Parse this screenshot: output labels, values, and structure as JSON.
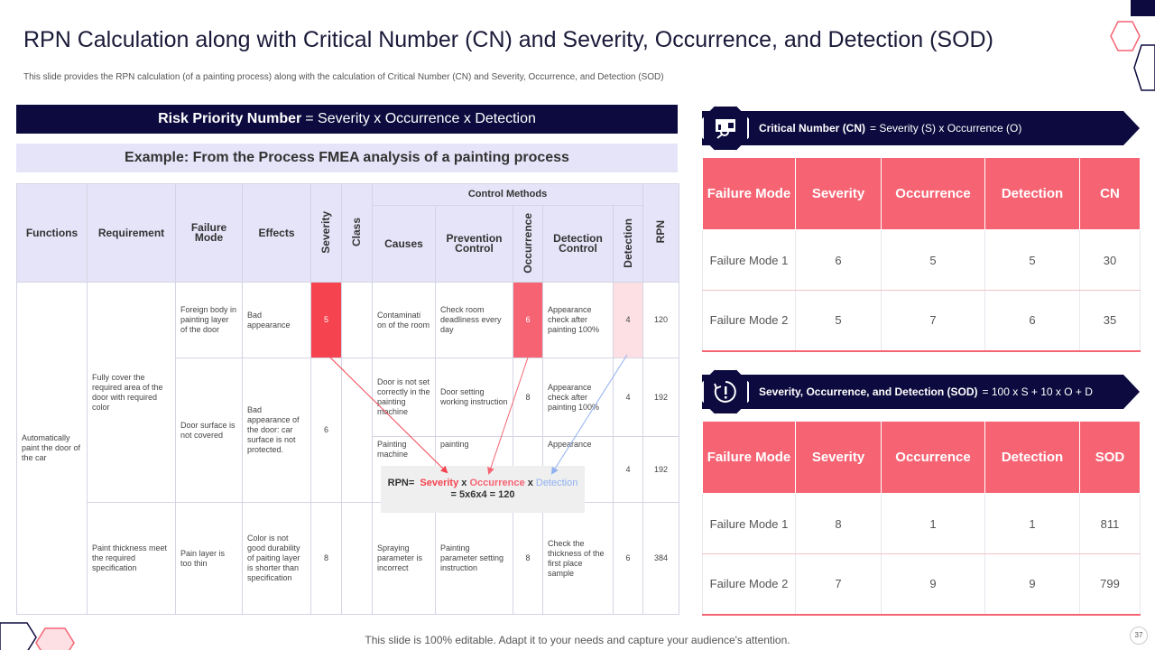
{
  "title": "RPN Calculation along with Critical Number (CN) and Severity, Occurrence, and Detection (SOD)",
  "subtitle": "This slide provides the RPN  calculation (of a painting process) along with the calculation of Critical Number  (CN)  and Severity, Occurrence, and Detection (SOD)",
  "rpn_formula": {
    "bold": "Risk Priority Number",
    "rest": "= Severity x Occurrence x Detection"
  },
  "example": "Example: From the Process FMEA analysis of a painting process",
  "fmea": {
    "headers": {
      "functions": "Functions",
      "requirement": "Requirement",
      "failure_mode": "Failure Mode",
      "effects": "Effects",
      "severity": "Severity",
      "class": "Class",
      "control_methods": "Control Methods",
      "causes": "Causes",
      "prevention": "Prevention Control",
      "occurrence": "Occurrence",
      "detection_control": "Detection Control",
      "detection": "Detection",
      "rpn": "RPN"
    },
    "function": "Automatically paint the door of the car",
    "req1": "Fully cover the required area of the door with required color",
    "req2": "Paint thickness meet the required specification",
    "rows": [
      {
        "failure_mode": "Foreign body in painting layer of the door",
        "effects": "Bad appearance",
        "severity": "5",
        "class": "",
        "causes": "Contaminati on of the room",
        "prevention": "Check room deadliness every day",
        "occurrence": "6",
        "detection_control": "Appearance check after painting 100%",
        "detection": "4",
        "rpn": "120"
      },
      {
        "failure_mode": "Door surface is not covered",
        "effects": "Bad appearance of the door: car surface is not protected.",
        "severity": "6",
        "class": "",
        "causes": "Door is not set correctly in the painting machine",
        "prevention": "Door setting working instruction",
        "occurrence": "8",
        "detection_control": "Appearance check after painting 100%",
        "detection": "4",
        "rpn": "192"
      },
      {
        "causes": "Painting machine",
        "prevention": "painting",
        "occurrence": "",
        "detection_control": "Appearance",
        "detection": "4",
        "rpn": "192"
      },
      {
        "failure_mode": "Pain layer is too thin",
        "effects": "Color is not good durability of paiting layer is shorter than specification",
        "severity": "8",
        "class": "",
        "causes": "Spraying parameter is incorrect",
        "prevention": "Painting parameter setting instruction",
        "occurrence": "8",
        "detection_control": "Check the thickness of the first place sample",
        "detection": "6",
        "rpn": "384"
      }
    ]
  },
  "rpn_callout": {
    "prefix": "RPN=",
    "severity": "Severity",
    "x": "x",
    "occurrence": "Occurrence",
    "detection": "Detection",
    "result": "= 5x6x4 = 120"
  },
  "cn": {
    "icon": "presentation-analytics-icon",
    "bold": "Critical Number (CN)",
    "rest": "= Severity (S) x Occurrence (O)",
    "headers": [
      "Failure Mode",
      "Severity",
      "Occurrence",
      "Detection",
      "CN"
    ],
    "rows": [
      [
        "Failure Mode 1",
        "6",
        "5",
        "5",
        "30"
      ],
      [
        "Failure Mode 2",
        "5",
        "7",
        "6",
        "35"
      ]
    ]
  },
  "sod": {
    "icon": "alert-refresh-icon",
    "bold": "Severity, Occurrence, and Detection (SOD)",
    "rest": "= 100 x S + 10 x O + D",
    "headers": [
      "Failure Mode",
      "Severity",
      "Occurrence",
      "Detection",
      "SOD"
    ],
    "rows": [
      [
        "Failure Mode 1",
        "8",
        "1",
        "1",
        "811"
      ],
      [
        "Failure Mode 2",
        "7",
        "9",
        "9",
        "799"
      ]
    ]
  },
  "footer": "This slide is 100% editable. Adapt it to your needs and capture your audience's attention.",
  "page_number": "37",
  "colors": {
    "navy": "#0c0a3e",
    "red": "#f5434f",
    "pink": "#f66474",
    "lavender": "#e6e4f8",
    "blue": "#8fb0f0"
  }
}
